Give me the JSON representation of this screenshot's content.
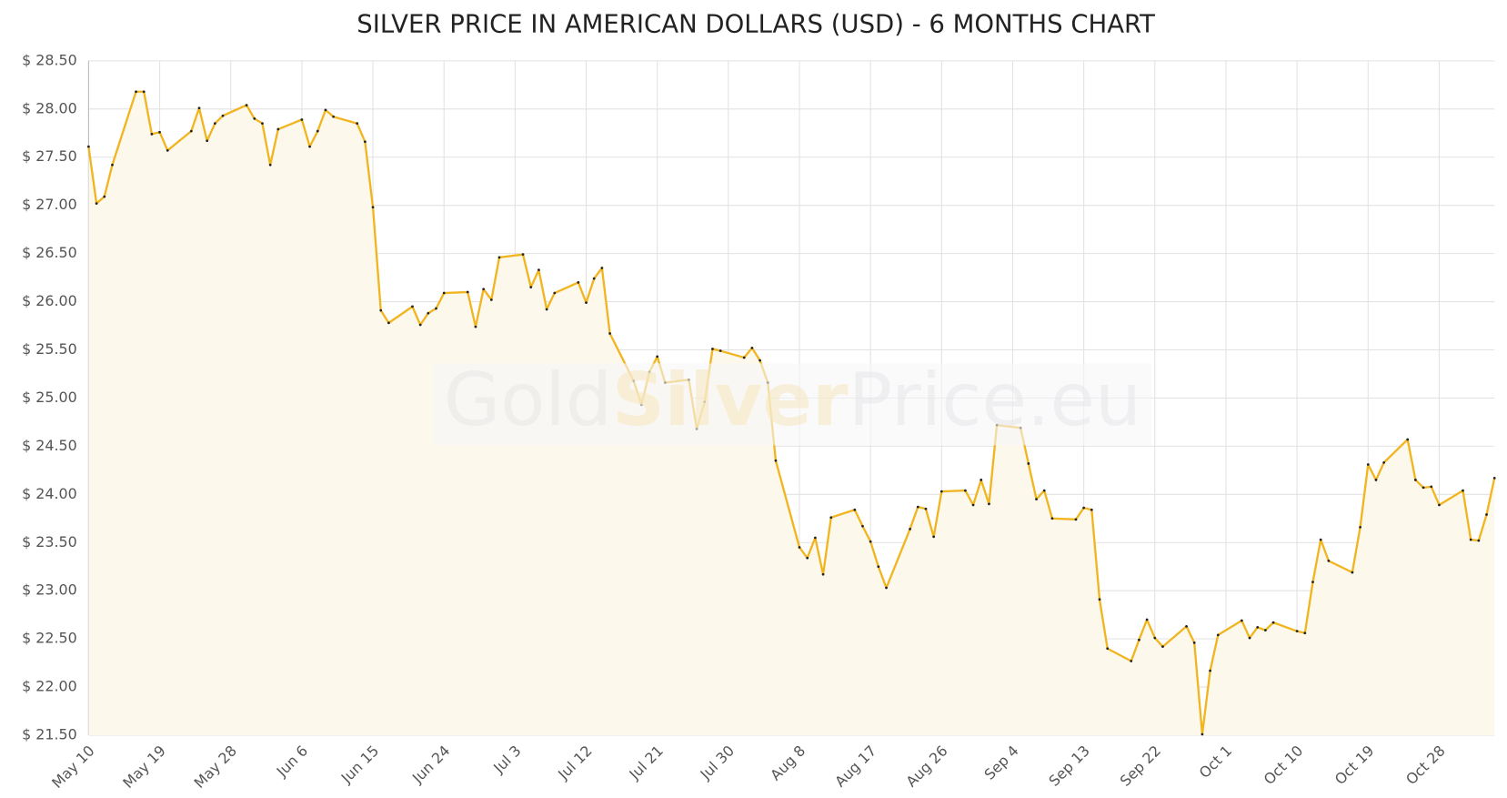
{
  "chart_data": {
    "type": "line",
    "title": "SILVER PRICE IN AMERICAN DOLLARS (USD) - 6 MONTHS CHART",
    "watermark": [
      "Gold",
      "Silver",
      "Price.eu"
    ],
    "color": "#f0b51f",
    "area_color": "#fdf8ec",
    "grid": true,
    "x": [
      "May 10",
      "May 11",
      "May 12",
      "May 13",
      "May 16",
      "May 17",
      "May 18",
      "May 19",
      "May 20",
      "May 23",
      "May 24",
      "May 25",
      "May 26",
      "May 27",
      "May 30",
      "May 31",
      "Jun 1",
      "Jun 2",
      "Jun 3",
      "Jun 6",
      "Jun 7",
      "Jun 8",
      "Jun 9",
      "Jun 10",
      "Jun 13",
      "Jun 14",
      "Jun 15",
      "Jun 16",
      "Jun 17",
      "Jun 20",
      "Jun 21",
      "Jun 22",
      "Jun 23",
      "Jun 24",
      "Jun 27",
      "Jun 28",
      "Jun 29",
      "Jun 30",
      "Jul 1",
      "Jul 4",
      "Jul 5",
      "Jul 6",
      "Jul 7",
      "Jul 8",
      "Jul 11",
      "Jul 12",
      "Jul 13",
      "Jul 14",
      "Jul 15",
      "Jul 18",
      "Jul 19",
      "Jul 20",
      "Jul 21",
      "Jul 22",
      "Jul 25",
      "Jul 26",
      "Jul 27",
      "Jul 28",
      "Jul 29",
      "Aug 1",
      "Aug 2",
      "Aug 3",
      "Aug 4",
      "Aug 5",
      "Aug 8",
      "Aug 9",
      "Aug 10",
      "Aug 11",
      "Aug 12",
      "Aug 15",
      "Aug 16",
      "Aug 17",
      "Aug 18",
      "Aug 19",
      "Aug 22",
      "Aug 23",
      "Aug 24",
      "Aug 25",
      "Aug 26",
      "Aug 29",
      "Aug 30",
      "Aug 31",
      "Sep 1",
      "Sep 2",
      "Sep 5",
      "Sep 6",
      "Sep 7",
      "Sep 8",
      "Sep 9",
      "Sep 12",
      "Sep 13",
      "Sep 14",
      "Sep 15",
      "Sep 16",
      "Sep 19",
      "Sep 20",
      "Sep 21",
      "Sep 22",
      "Sep 23",
      "Sep 26",
      "Sep 27",
      "Sep 28",
      "Sep 29",
      "Sep 30",
      "Oct 3",
      "Oct 4",
      "Oct 5",
      "Oct 6",
      "Oct 7",
      "Oct 10",
      "Oct 11",
      "Oct 12",
      "Oct 13",
      "Oct 14",
      "Oct 17",
      "Oct 18",
      "Oct 19",
      "Oct 20",
      "Oct 21",
      "Oct 24",
      "Oct 25",
      "Oct 26",
      "Oct 27",
      "Oct 28",
      "Oct 31",
      "Nov 1",
      "Nov 2",
      "Nov 3",
      "Nov 4"
    ],
    "values": [
      27.61,
      27.02,
      27.09,
      27.42,
      28.18,
      28.18,
      27.74,
      27.76,
      27.57,
      27.77,
      28.01,
      27.67,
      27.85,
      27.93,
      28.04,
      27.9,
      27.85,
      27.42,
      27.79,
      27.89,
      27.61,
      27.77,
      27.99,
      27.92,
      27.85,
      27.66,
      26.98,
      25.91,
      25.78,
      25.95,
      25.76,
      25.88,
      25.93,
      26.09,
      26.1,
      25.74,
      26.13,
      26.02,
      26.46,
      26.49,
      26.15,
      26.33,
      25.92,
      26.09,
      26.2,
      25.99,
      26.24,
      26.35,
      25.67,
      25.18,
      24.93,
      25.27,
      25.43,
      25.16,
      25.19,
      24.68,
      24.96,
      25.51,
      25.49,
      25.42,
      25.52,
      25.39,
      25.16,
      24.35,
      23.45,
      23.34,
      23.55,
      23.17,
      23.76,
      23.84,
      23.67,
      23.51,
      23.25,
      23.03,
      23.64,
      23.87,
      23.85,
      23.56,
      24.03,
      24.04,
      23.89,
      24.15,
      23.9,
      24.72,
      24.69,
      24.32,
      23.95,
      24.04,
      23.75,
      23.74,
      23.86,
      23.84,
      22.91,
      22.4,
      22.27,
      22.49,
      22.7,
      22.51,
      22.42,
      22.63,
      22.46,
      21.51,
      22.17,
      22.54,
      22.69,
      22.51,
      22.62,
      22.59,
      22.67,
      22.58,
      22.56,
      23.09,
      23.53,
      23.31,
      23.19,
      23.66,
      24.31,
      24.15,
      24.33,
      24.57,
      24.15,
      24.07,
      24.08,
      23.89,
      24.04,
      23.53,
      23.52,
      23.79,
      24.17
    ],
    "xlim": [
      "May 10",
      "Nov 4"
    ],
    "xticks": [
      "May 10",
      "May 19",
      "May 28",
      "Jun 6",
      "Jun 15",
      "Jun 24",
      "Jul 3",
      "Jul 12",
      "Jul 21",
      "Jul 30",
      "Aug 8",
      "Aug 17",
      "Aug 26",
      "Sep 4",
      "Sep 13",
      "Sep 22",
      "Oct 1",
      "Oct 10",
      "Oct 19",
      "Oct 28"
    ],
    "ylim": [
      21.5,
      28.5
    ],
    "yticks": [
      {
        "value": 21.5,
        "label": "$ 21.50"
      },
      {
        "value": 22,
        "label": "$ 22.00"
      },
      {
        "value": 22.5,
        "label": "$ 22.50"
      },
      {
        "value": 23,
        "label": "$ 23.00"
      },
      {
        "value": 23.5,
        "label": "$ 23.50"
      },
      {
        "value": 24,
        "label": "$ 24.00"
      },
      {
        "value": 24.5,
        "label": "$ 24.50"
      },
      {
        "value": 25,
        "label": "$ 25.00"
      },
      {
        "value": 25.5,
        "label": "$ 25.50"
      },
      {
        "value": 26,
        "label": "$ 26.00"
      },
      {
        "value": 26.5,
        "label": "$ 26.50"
      },
      {
        "value": 27,
        "label": "$ 27.00"
      },
      {
        "value": 27.5,
        "label": "$ 27.50"
      },
      {
        "value": 28,
        "label": "$ 28.00"
      },
      {
        "value": 28.5,
        "label": "$ 28.50"
      }
    ]
  }
}
